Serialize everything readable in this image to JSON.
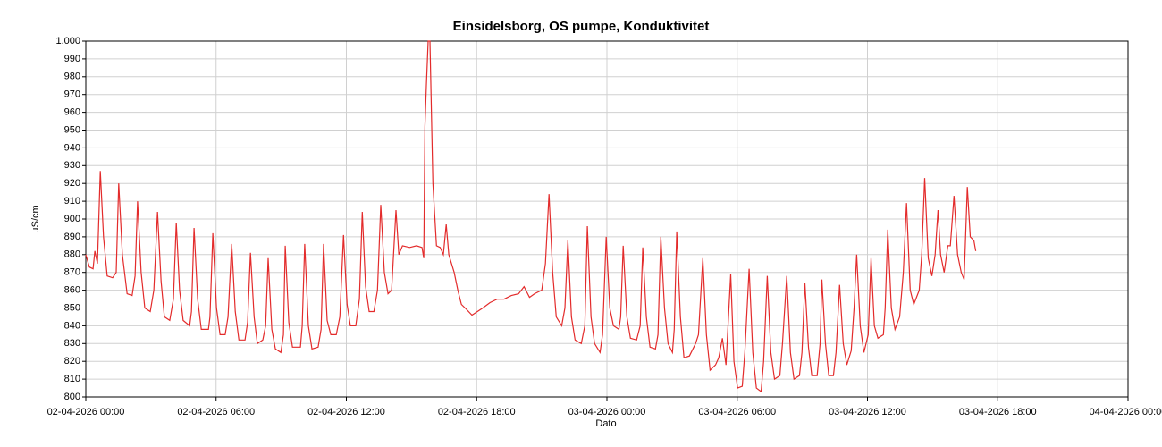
{
  "chart_data": {
    "type": "line",
    "title": "Einsidelsborg, OS pumpe, Konduktivitet",
    "xlabel": "Dato",
    "ylabel": "µS/cm",
    "color": "#e32b2b",
    "grid": true,
    "xlim": [
      "02-04-2026 00:00",
      "04-04-2026 00:00"
    ],
    "xticks": [
      "02-04-2026 00:00",
      "02-04-2026 06:00",
      "02-04-2026 12:00",
      "02-04-2026 18:00",
      "03-04-2026 00:00",
      "03-04-2026 06:00",
      "03-04-2026 12:00",
      "03-04-2026 18:00",
      "04-04-2026 00:00"
    ],
    "ylim": [
      800,
      1000
    ],
    "yticks": [
      800,
      810,
      820,
      830,
      840,
      850,
      860,
      870,
      880,
      890,
      900,
      910,
      920,
      930,
      940,
      950,
      960,
      970,
      980,
      990,
      {
        "value": 1000,
        "label": "1.000"
      }
    ],
    "x": [
      "02-04-2026 00:00",
      "02-04-2026 00:10",
      "02-04-2026 00:20",
      "02-04-2026 00:25",
      "02-04-2026 00:32",
      "02-04-2026 00:40",
      "02-04-2026 00:49",
      "02-04-2026 00:59",
      "02-04-2026 01:14",
      "02-04-2026 01:24",
      "02-04-2026 01:31",
      "02-04-2026 01:41",
      "02-04-2026 01:54",
      "02-04-2026 02:08",
      "02-04-2026 02:16",
      "02-04-2026 02:23",
      "02-04-2026 02:33",
      "02-04-2026 02:43",
      "02-04-2026 02:58",
      "02-04-2026 03:08",
      "02-04-2026 03:18",
      "02-04-2026 03:28",
      "02-04-2026 03:37",
      "02-04-2026 03:52",
      "02-04-2026 04:02",
      "02-04-2026 04:10",
      "02-04-2026 04:19",
      "02-04-2026 04:29",
      "02-04-2026 04:47",
      "02-04-2026 04:52",
      "02-04-2026 04:59",
      "02-04-2026 05:09",
      "02-04-2026 05:19",
      "02-04-2026 05:39",
      "02-04-2026 05:43",
      "02-04-2026 05:51",
      "02-04-2026 06:01",
      "02-04-2026 06:11",
      "02-04-2026 06:25",
      "02-04-2026 06:33",
      "02-04-2026 06:43",
      "02-04-2026 06:53",
      "02-04-2026 07:03",
      "02-04-2026 07:20",
      "02-04-2026 07:27",
      "02-04-2026 07:35",
      "02-04-2026 07:45",
      "02-04-2026 07:54",
      "02-04-2026 08:09",
      "02-04-2026 08:17",
      "02-04-2026 08:24",
      "02-04-2026 08:34",
      "02-04-2026 08:44",
      "02-04-2026 08:59",
      "02-04-2026 09:06",
      "02-04-2026 09:11",
      "02-04-2026 09:21",
      "02-04-2026 09:31",
      "02-04-2026 09:53",
      "02-04-2026 09:58",
      "02-04-2026 10:05",
      "02-04-2026 10:15",
      "02-04-2026 10:25",
      "02-04-2026 10:42",
      "02-04-2026 10:50",
      "02-04-2026 10:57",
      "02-04-2026 11:07",
      "02-04-2026 11:17",
      "02-04-2026 11:32",
      "02-04-2026 11:42",
      "02-04-2026 11:52",
      "02-04-2026 12:02",
      "02-04-2026 12:11",
      "02-04-2026 12:26",
      "02-04-2026 12:36",
      "02-04-2026 12:44",
      "02-04-2026 12:53",
      "02-04-2026 13:03",
      "02-04-2026 13:16",
      "02-04-2026 13:26",
      "02-04-2026 13:35",
      "02-04-2026 13:45",
      "02-04-2026 13:55",
      "02-04-2026 14:05",
      "02-04-2026 14:17",
      "02-04-2026 14:25",
      "02-04-2026 14:35",
      "02-04-2026 14:55",
      "02-04-2026 15:14",
      "02-04-2026 15:29",
      "02-04-2026 15:34",
      "02-04-2026 15:37",
      "02-04-2026 15:41",
      "02-04-2026 15:46",
      "02-04-2026 15:51",
      "02-04-2026 15:59",
      "02-04-2026 16:09",
      "02-04-2026 16:19",
      "02-04-2026 16:28",
      "02-04-2026 16:36",
      "02-04-2026 16:43",
      "02-04-2026 16:58",
      "02-04-2026 17:08",
      "02-04-2026 17:18",
      "02-04-2026 17:33",
      "02-04-2026 17:47",
      "02-04-2026 18:02",
      "02-04-2026 18:17",
      "02-04-2026 18:37",
      "02-04-2026 18:57",
      "02-04-2026 19:16",
      "02-04-2026 19:36",
      "02-04-2026 19:56",
      "02-04-2026 20:11",
      "02-04-2026 20:26",
      "02-04-2026 20:40",
      "02-04-2026 21:00",
      "02-04-2026 21:10",
      "02-04-2026 21:20",
      "02-04-2026 21:30",
      "02-04-2026 21:40",
      "02-04-2026 21:55",
      "02-04-2026 22:04",
      "02-04-2026 22:12",
      "02-04-2026 22:22",
      "02-04-2026 22:32",
      "02-04-2026 22:49",
      "02-04-2026 22:59",
      "02-04-2026 23:06",
      "02-04-2026 23:16",
      "02-04-2026 23:26",
      "02-04-2026 23:41",
      "02-04-2026 23:48",
      "02-04-2026 23:58",
      "03-04-2026 00:08",
      "03-04-2026 00:18",
      "03-04-2026 00:33",
      "03-04-2026 00:38",
      "03-04-2026 00:45",
      "03-04-2026 00:55",
      "03-04-2026 01:05",
      "03-04-2026 01:22",
      "03-04-2026 01:32",
      "03-04-2026 01:39",
      "03-04-2026 01:49",
      "03-04-2026 01:59",
      "03-04-2026 02:14",
      "03-04-2026 02:21",
      "03-04-2026 02:29",
      "03-04-2026 02:39",
      "03-04-2026 02:49",
      "03-04-2026 03:01",
      "03-04-2026 03:06",
      "03-04-2026 03:13",
      "03-04-2026 03:23",
      "03-04-2026 03:33",
      "03-04-2026 03:48",
      "03-04-2026 04:05",
      "03-04-2026 04:13",
      "03-04-2026 04:25",
      "03-04-2026 04:35",
      "03-04-2026 04:45",
      "03-04-2026 05:00",
      "03-04-2026 05:09",
      "03-04-2026 05:19",
      "03-04-2026 05:29",
      "03-04-2026 05:42",
      "03-04-2026 05:51",
      "03-04-2026 06:01",
      "03-04-2026 06:14",
      "03-04-2026 06:21",
      "03-04-2026 06:33",
      "03-04-2026 06:43",
      "03-04-2026 06:53",
      "03-04-2026 07:06",
      "03-04-2026 07:13",
      "03-04-2026 07:23",
      "03-04-2026 07:33",
      "03-04-2026 07:43",
      "03-04-2026 07:58",
      "03-04-2026 08:05",
      "03-04-2026 08:17",
      "03-04-2026 08:27",
      "03-04-2026 08:37",
      "03-04-2026 08:52",
      "03-04-2026 08:59",
      "03-04-2026 09:07",
      "03-04-2026 09:17",
      "03-04-2026 09:26",
      "03-04-2026 09:41",
      "03-04-2026 09:49",
      "03-04-2026 09:54",
      "03-04-2026 10:04",
      "03-04-2026 10:13",
      "03-04-2026 10:26",
      "03-04-2026 10:33",
      "03-04-2026 10:43",
      "03-04-2026 10:53",
      "03-04-2026 11:03",
      "03-04-2026 11:15",
      "03-04-2026 11:23",
      "03-04-2026 11:30",
      "03-04-2026 11:40",
      "03-04-2026 11:50",
      "03-04-2026 12:02",
      "03-04-2026 12:10",
      "03-04-2026 12:19",
      "03-04-2026 12:29",
      "03-04-2026 12:44",
      "03-04-2026 12:49",
      "03-04-2026 12:56",
      "03-04-2026 13:06",
      "03-04-2026 13:16",
      "03-04-2026 13:29",
      "03-04-2026 13:39",
      "03-04-2026 13:48",
      "03-04-2026 13:58",
      "03-04-2026 14:08",
      "03-04-2026 14:23",
      "03-04-2026 14:30",
      "03-04-2026 14:38",
      "03-04-2026 14:48",
      "03-04-2026 14:58",
      "03-04-2026 15:07",
      "03-04-2026 15:15",
      "03-04-2026 15:22",
      "03-04-2026 15:32",
      "03-04-2026 15:42",
      "03-04-2026 15:49",
      "03-04-2026 15:59",
      "03-04-2026 16:09",
      "03-04-2026 16:19",
      "03-04-2026 16:27",
      "03-04-2026 16:36",
      "03-04-2026 16:44",
      "03-04-2026 16:54",
      "03-04-2026 16:59"
    ],
    "values": [
      880,
      873,
      872,
      882,
      875,
      927,
      890,
      868,
      867,
      870,
      920,
      880,
      858,
      857,
      868,
      910,
      870,
      850,
      848,
      860,
      904,
      865,
      845,
      843,
      855,
      898,
      860,
      843,
      840,
      848,
      895,
      855,
      838,
      838,
      845,
      892,
      850,
      835,
      835,
      845,
      886,
      848,
      832,
      832,
      842,
      881,
      845,
      830,
      832,
      840,
      878,
      838,
      827,
      825,
      835,
      885,
      842,
      828,
      828,
      840,
      886,
      840,
      827,
      828,
      838,
      886,
      843,
      835,
      835,
      845,
      891,
      852,
      840,
      840,
      855,
      904,
      862,
      848,
      848,
      860,
      908,
      870,
      858,
      860,
      905,
      880,
      885,
      884,
      885,
      884,
      878,
      952,
      975,
      1000,
      1000,
      920,
      885,
      884,
      880,
      897,
      880,
      870,
      860,
      852,
      849,
      846,
      848,
      850,
      853,
      855,
      855,
      857,
      858,
      862,
      856,
      858,
      860,
      875,
      914,
      870,
      845,
      840,
      850,
      888,
      845,
      832,
      830,
      840,
      896,
      845,
      830,
      825,
      835,
      890,
      850,
      840,
      838,
      845,
      885,
      845,
      833,
      832,
      840,
      884,
      845,
      828,
      827,
      835,
      890,
      850,
      830,
      825,
      838,
      893,
      845,
      822,
      823,
      830,
      835,
      878,
      835,
      815,
      818,
      822,
      833,
      818,
      869,
      820,
      805,
      806,
      825,
      872,
      825,
      805,
      803,
      820,
      868,
      825,
      810,
      812,
      830,
      868,
      825,
      810,
      812,
      825,
      864,
      828,
      812,
      812,
      830,
      866,
      830,
      812,
      812,
      825,
      863,
      830,
      818,
      826,
      850,
      880,
      840,
      825,
      835,
      878,
      840,
      833,
      835,
      850,
      894,
      850,
      838,
      845,
      870,
      909,
      860,
      852,
      860,
      880,
      923,
      878,
      868,
      880,
      905,
      880,
      870,
      885,
      885,
      913,
      880,
      870,
      866,
      918,
      890,
      888,
      882
    ]
  }
}
